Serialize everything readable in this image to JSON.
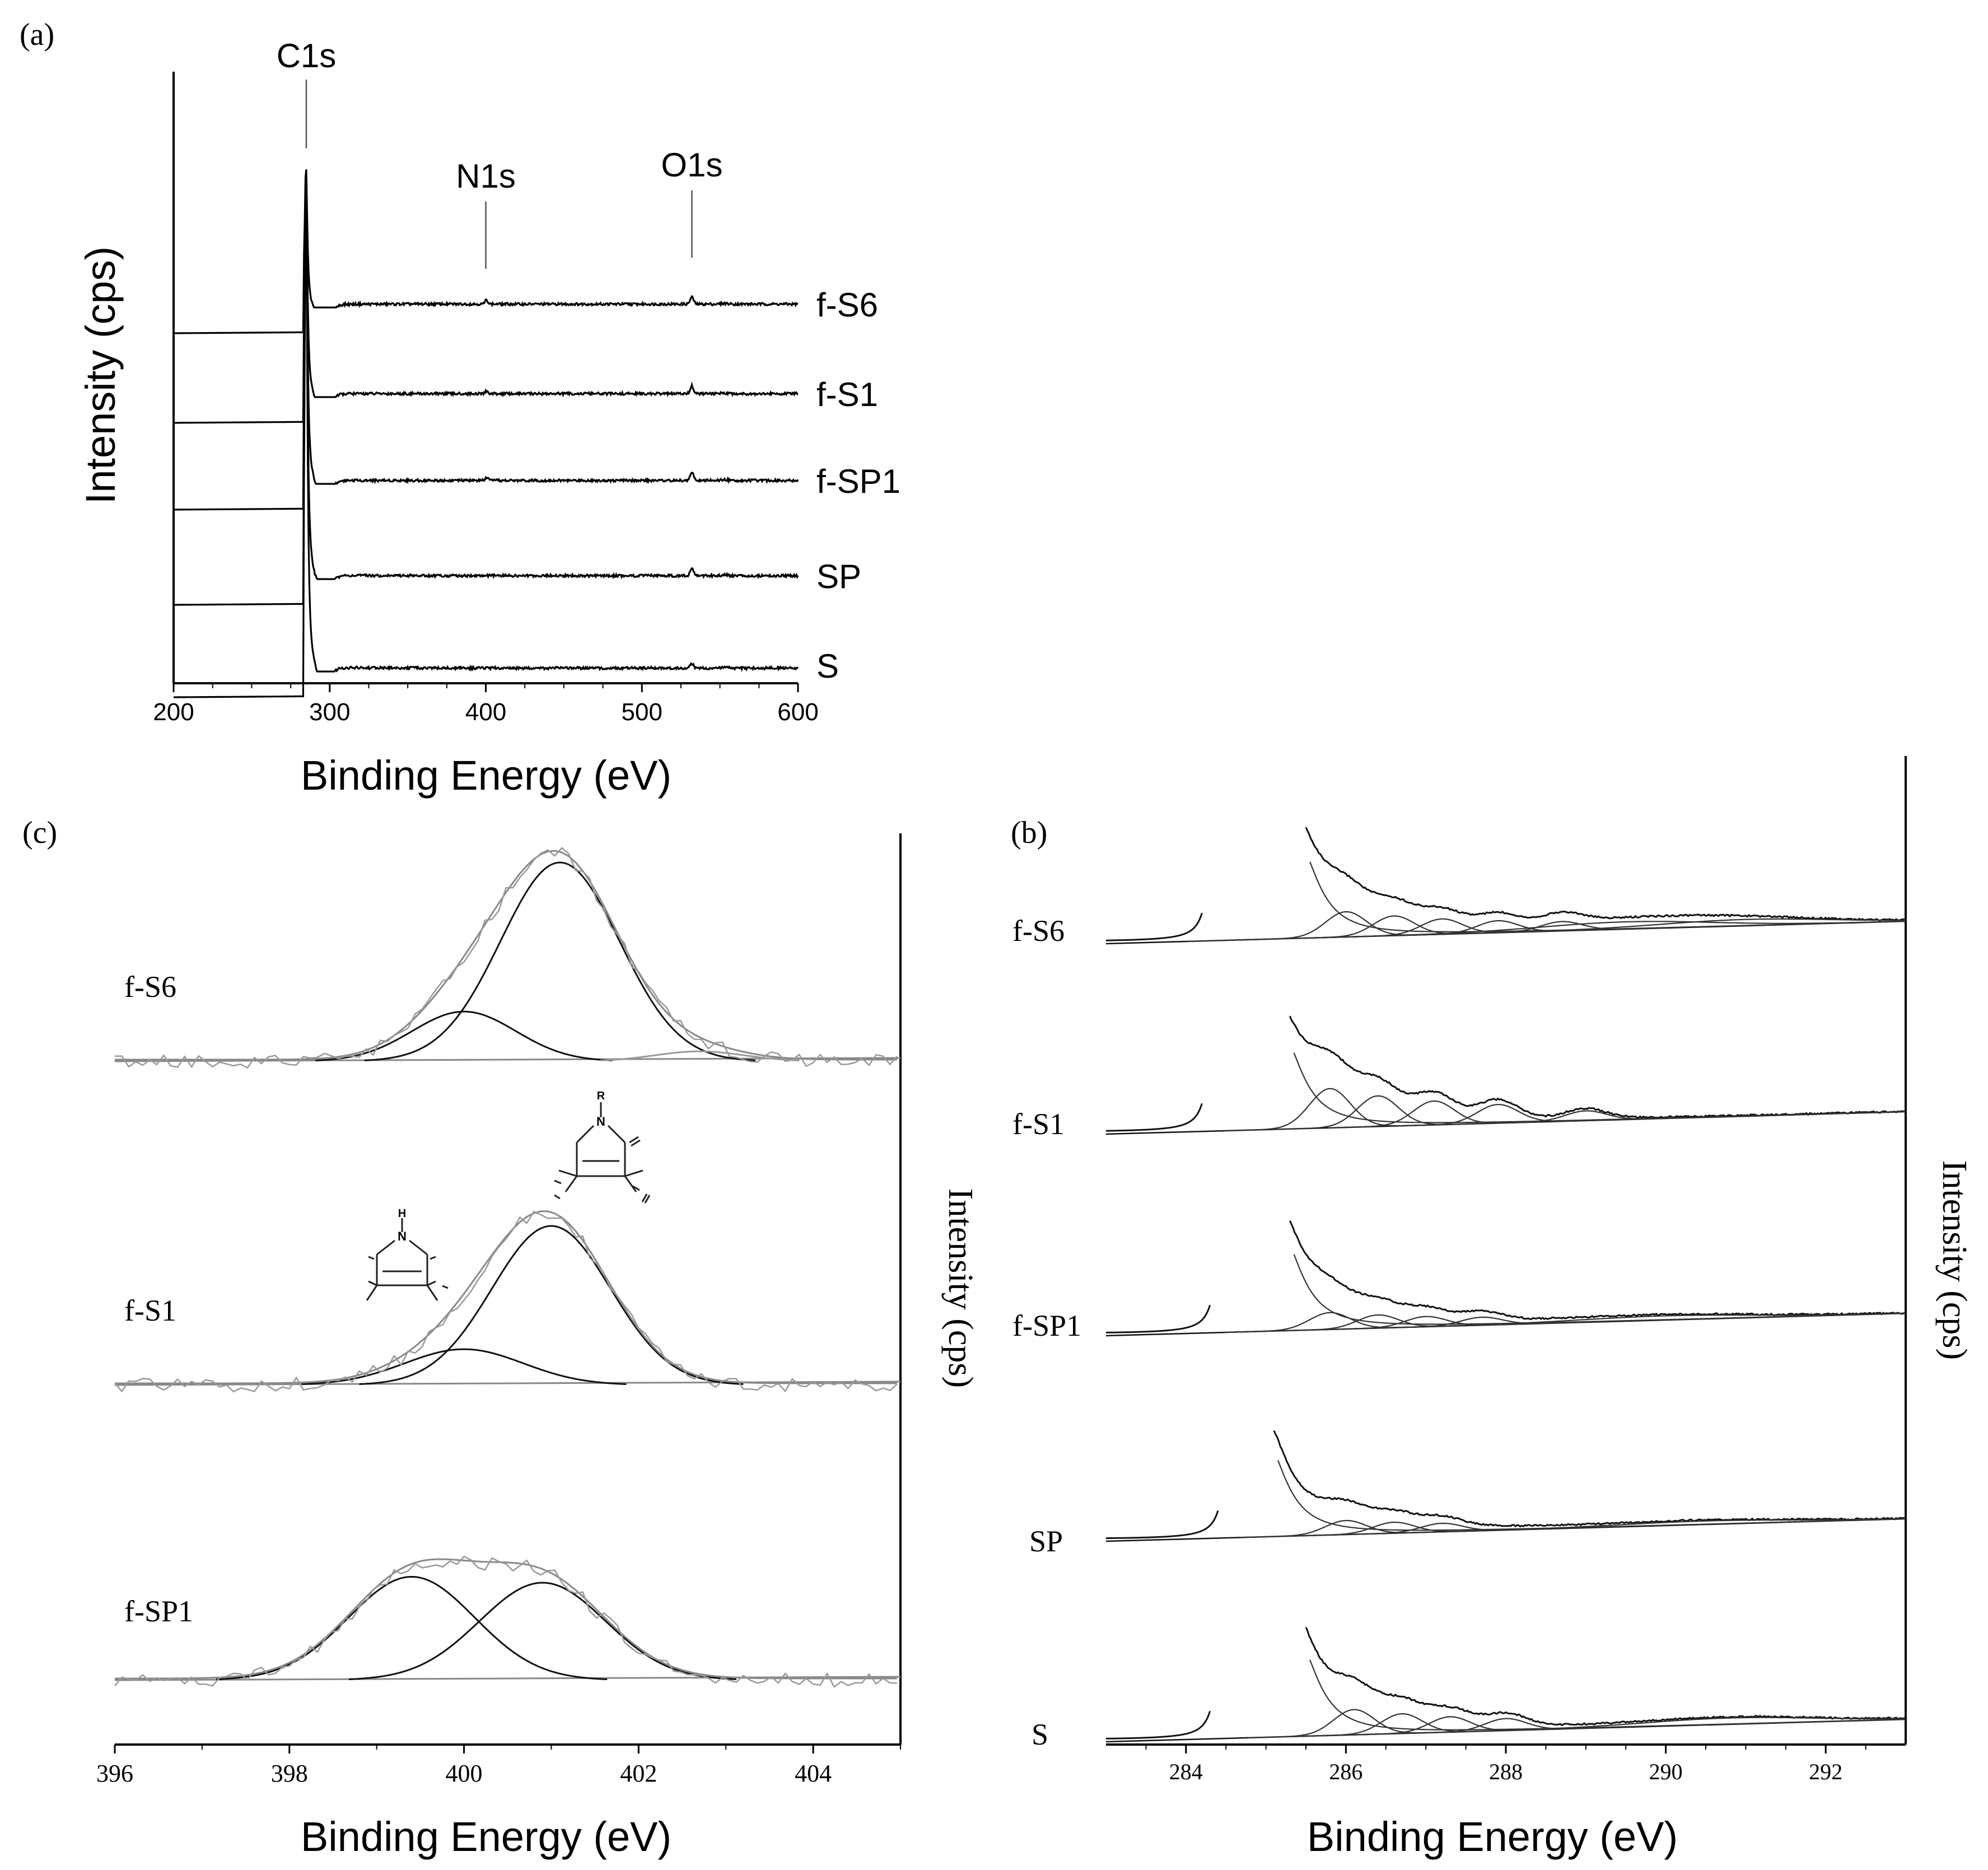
{
  "chart_data": [
    {
      "panel": "(a)",
      "type": "line",
      "xlabel": "Binding Energy (eV)",
      "ylabel": "Intensity (cps)",
      "xlim": [
        200,
        600
      ],
      "xticks": [
        "200",
        "300",
        "400",
        "500",
        "600"
      ],
      "peak_labels": [
        {
          "text": "C1s",
          "x": 285
        },
        {
          "text": "N1s",
          "x": 400
        },
        {
          "text": "O1s",
          "x": 532
        }
      ],
      "series": [
        {
          "name": "f-S6",
          "peaks": {
            "C1s": 1.0,
            "N1s": 0.1,
            "O1s": 0.17
          }
        },
        {
          "name": "f-S1",
          "peaks": {
            "C1s": 1.0,
            "N1s": 0.04,
            "O1s": 0.12
          }
        },
        {
          "name": "f-SP1",
          "peaks": {
            "C1s": 1.0,
            "N1s": 0.03,
            "O1s": 0.09
          }
        },
        {
          "name": "SP",
          "peaks": {
            "C1s": 1.0,
            "N1s": 0.0,
            "O1s": 0.06
          }
        },
        {
          "name": "S",
          "peaks": {
            "C1s": 1.0,
            "N1s": 0.0,
            "O1s": 0.03
          }
        }
      ]
    },
    {
      "panel": "(b)",
      "type": "line",
      "xlabel": "Binding Energy (eV)",
      "ylabel": "Intensity (cps)",
      "xlim": [
        283,
        293
      ],
      "xticks": [
        "284",
        "286",
        "288",
        "290",
        "292"
      ],
      "series": [
        {
          "name": "f-S6",
          "components_eV": [
            286.0,
            286.6,
            287.2,
            287.9,
            288.7,
            289.5,
            291.0
          ]
        },
        {
          "name": "f-S1",
          "components_eV": [
            285.8,
            286.4,
            287.1,
            287.9,
            289.0
          ]
        },
        {
          "name": "f-SP1",
          "components_eV": [
            285.8,
            286.4,
            287.0,
            287.7,
            290.0
          ]
        },
        {
          "name": "SP",
          "components_eV": [
            286.0,
            286.6,
            287.2,
            290.5
          ]
        },
        {
          "name": "S",
          "components_eV": [
            286.1,
            286.7,
            287.3,
            288.0,
            290.8
          ]
        }
      ]
    },
    {
      "panel": "(c)",
      "type": "line",
      "xlabel": "Binding Energy (eV)",
      "ylabel": "Intensity (cps)",
      "xlim": [
        396,
        405
      ],
      "xticks": [
        "396",
        "398",
        "400",
        "402",
        "404"
      ],
      "structure_labels": {
        "pyrrolidine_nh": "H",
        "pyrrolidine_nh_atom": "N",
        "pyrrolidine_nr": "R",
        "pyrrolidine_nr_atom": "N"
      },
      "series": [
        {
          "name": "f-S6",
          "components": [
            {
              "center_eV": 400.0,
              "height": 0.25,
              "fwhm_eV": 1.4
            },
            {
              "center_eV": 401.1,
              "height": 1.0,
              "fwhm_eV": 1.6
            },
            {
              "center_eV": 402.7,
              "height": 0.05,
              "fwhm_eV": 1.2
            }
          ]
        },
        {
          "name": "f-S1",
          "components": [
            {
              "center_eV": 400.0,
              "height": 0.18,
              "fwhm_eV": 1.6
            },
            {
              "center_eV": 401.0,
              "height": 0.8,
              "fwhm_eV": 1.6
            }
          ]
        },
        {
          "name": "f-SP1",
          "components": [
            {
              "center_eV": 399.4,
              "height": 0.52,
              "fwhm_eV": 1.7
            },
            {
              "center_eV": 400.9,
              "height": 0.49,
              "fwhm_eV": 1.7
            }
          ]
        }
      ]
    }
  ]
}
